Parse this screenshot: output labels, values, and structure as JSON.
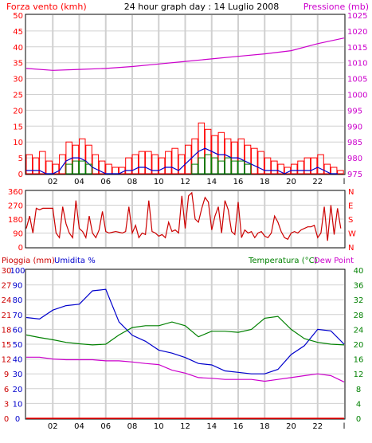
{
  "header": {
    "title": "24 hour graph day : 14 Luglio 2008",
    "left_label": "Forza vento (kmh)",
    "right_label": "Pressione (mb)"
  },
  "colors": {
    "background": "#ffffff",
    "panel_bg": "#ffffff",
    "frame": "#000000",
    "grid": "#d0d0d0",
    "red": "#ff0000",
    "blue": "#0000cc",
    "green": "#008000",
    "magenta": "#cc00cc",
    "wind_gust": "#ff0000",
    "wind_avg": "#0000cc",
    "wind_min": "#008000",
    "pressure": "#cc00cc",
    "direction": "#cc0000",
    "rain": "#cc0000",
    "humidity": "#0000cc",
    "temperature": "#008000",
    "dewpoint": "#cc00cc"
  },
  "x_ticks": [
    "02",
    "04",
    "06",
    "08",
    "10",
    "12",
    "14",
    "16",
    "18",
    "20",
    "22",
    "l"
  ],
  "chart_data": [
    {
      "id": "wind_pressure",
      "type": "line",
      "title": "24 hour graph day : 14 Luglio 2008",
      "ylabel_left": "Forza vento (kmh)",
      "ylabel_right": "Pressione (mb)",
      "ylim_left": [
        0,
        50
      ],
      "ylim_right": [
        975,
        1025
      ],
      "yticks_left": [
        0,
        5,
        10,
        15,
        20,
        25,
        30,
        35,
        40,
        45,
        50
      ],
      "yticks_right": [
        975,
        980,
        985,
        990,
        995,
        1000,
        1005,
        1010,
        1015,
        1020,
        1025
      ],
      "xlim": [
        0,
        24
      ],
      "grid": true,
      "series": [
        {
          "key": "gust",
          "axis": "left",
          "style": "bars",
          "color": "red",
          "x": [
            0.0,
            0.5,
            1.0,
            1.5,
            2.0,
            2.5,
            3.0,
            3.5,
            4.0,
            4.5,
            5.0,
            5.5,
            6.0,
            6.5,
            7.0,
            7.5,
            8.0,
            8.5,
            9.0,
            9.5,
            10.0,
            10.5,
            11.0,
            11.5,
            12.0,
            12.5,
            13.0,
            13.5,
            14.0,
            14.5,
            15.0,
            15.5,
            16.0,
            16.5,
            17.0,
            17.5,
            18.0,
            18.5,
            19.0,
            19.5,
            20.0,
            20.5,
            21.0,
            21.5,
            22.0,
            22.5,
            23.0,
            23.5
          ],
          "values": [
            6,
            5,
            7,
            4,
            3,
            6,
            10,
            9,
            11,
            9,
            6,
            4,
            3,
            2,
            2,
            5,
            6,
            7,
            7,
            6,
            5,
            7,
            8,
            6,
            9,
            11,
            16,
            14,
            12,
            13,
            11,
            10,
            11,
            9,
            8,
            7,
            5,
            4,
            3,
            2,
            3,
            4,
            5,
            5,
            6,
            3,
            2,
            1
          ]
        },
        {
          "key": "average",
          "axis": "left",
          "style": "line",
          "color": "blue",
          "x": [
            0.0,
            0.5,
            1.0,
            1.5,
            2.0,
            2.5,
            3.0,
            3.5,
            4.0,
            4.5,
            5.0,
            5.5,
            6.0,
            6.5,
            7.0,
            7.5,
            8.0,
            8.5,
            9.0,
            9.5,
            10.0,
            10.5,
            11.0,
            11.5,
            12.0,
            12.5,
            13.0,
            13.5,
            14.0,
            14.5,
            15.0,
            15.5,
            16.0,
            16.5,
            17.0,
            17.5,
            18.0,
            18.5,
            19.0,
            19.5,
            20.0,
            20.5,
            21.0,
            21.5,
            22.0,
            22.5,
            23.0,
            23.5
          ],
          "values": [
            1,
            1,
            1,
            0,
            0,
            1,
            4,
            5,
            5,
            4,
            2,
            1,
            0,
            0,
            0,
            1,
            1,
            2,
            2,
            1,
            1,
            2,
            2,
            1,
            3,
            5,
            7,
            8,
            7,
            6,
            6,
            5,
            5,
            4,
            3,
            2,
            1,
            1,
            1,
            0,
            1,
            1,
            1,
            1,
            2,
            1,
            0,
            0
          ]
        },
        {
          "key": "minimum",
          "axis": "left",
          "style": "bars",
          "color": "green",
          "x": [
            3.0,
            3.5,
            4.0,
            4.5,
            12.5,
            13.0,
            13.5,
            14.0,
            14.5,
            15.0,
            15.5,
            16.0,
            16.5
          ],
          "values": [
            3,
            4,
            4,
            3,
            3,
            5,
            6,
            5,
            4,
            5,
            4,
            4,
            3
          ]
        },
        {
          "key": "pressure",
          "axis": "right",
          "style": "line",
          "color": "magenta",
          "x": [
            0,
            2,
            4,
            6,
            8,
            10,
            12,
            14,
            16,
            18,
            20,
            22,
            24
          ],
          "values": [
            1008.2,
            1007.6,
            1007.9,
            1008.2,
            1008.8,
            1009.6,
            1010.4,
            1011.2,
            1012.0,
            1012.8,
            1013.8,
            1016.0,
            1017.8
          ]
        }
      ]
    },
    {
      "id": "wind_direction",
      "type": "line",
      "ylabel_left": "",
      "ylim": [
        0,
        360
      ],
      "yticks_left": [
        0,
        90,
        180,
        270,
        360
      ],
      "yticks_right": [
        "N",
        "W",
        "S",
        "E",
        "N"
      ],
      "xlim": [
        0,
        24
      ],
      "grid": true,
      "series": [
        {
          "key": "direction",
          "color": "red",
          "x": [
            0.0,
            0.25,
            0.5,
            0.75,
            1.0,
            1.25,
            1.5,
            1.75,
            2.0,
            2.25,
            2.5,
            2.75,
            3.0,
            3.25,
            3.5,
            3.75,
            4.0,
            4.25,
            4.5,
            4.75,
            5.0,
            5.25,
            5.5,
            5.75,
            6.0,
            6.25,
            6.5,
            6.75,
            7.0,
            7.25,
            7.5,
            7.75,
            8.0,
            8.25,
            8.5,
            8.75,
            9.0,
            9.25,
            9.5,
            9.75,
            10.0,
            10.25,
            10.5,
            10.75,
            11.0,
            11.25,
            11.5,
            11.75,
            12.0,
            12.25,
            12.5,
            12.75,
            13.0,
            13.25,
            13.5,
            13.75,
            14.0,
            14.25,
            14.5,
            14.75,
            15.0,
            15.25,
            15.5,
            15.75,
            16.0,
            16.25,
            16.5,
            16.75,
            17.0,
            17.25,
            17.5,
            17.75,
            18.0,
            18.25,
            18.5,
            18.75,
            19.0,
            19.25,
            19.5,
            19.75,
            20.0,
            20.25,
            20.5,
            20.75,
            21.0,
            21.25,
            21.5,
            21.75,
            22.0,
            22.25,
            22.5,
            22.75,
            23.0,
            23.25,
            23.5,
            23.75
          ],
          "values": [
            120,
            200,
            90,
            250,
            240,
            250,
            250,
            250,
            250,
            90,
            60,
            260,
            150,
            90,
            60,
            300,
            120,
            100,
            60,
            200,
            90,
            60,
            110,
            230,
            100,
            90,
            95,
            100,
            95,
            90,
            100,
            260,
            90,
            140,
            60,
            90,
            80,
            300,
            100,
            90,
            70,
            80,
            60,
            160,
            100,
            110,
            90,
            330,
            120,
            330,
            350,
            180,
            160,
            250,
            320,
            290,
            110,
            200,
            260,
            90,
            300,
            240,
            100,
            80,
            290,
            60,
            110,
            90,
            100,
            60,
            90,
            100,
            70,
            60,
            90,
            200,
            160,
            100,
            60,
            50,
            90,
            100,
            90,
            110,
            120,
            130,
            130,
            140,
            60,
            90,
            260,
            40,
            270,
            80,
            250,
            120
          ]
        }
      ]
    },
    {
      "id": "temp_humidity",
      "type": "line",
      "ylabel_left": "Pioggia (mm)",
      "ylabel_left2": "Umidita %",
      "ylabel_right": "Temperatura (°C)",
      "ylabel_right2": "Dew Point",
      "ylim_rain": [
        0,
        30
      ],
      "ylim_humidity": [
        0,
        100
      ],
      "ylim_temp": [
        0,
        40
      ],
      "yticks_rain": [
        0,
        3,
        6,
        9,
        12,
        15,
        18,
        21,
        24,
        27,
        30
      ],
      "yticks_humidity": [
        0,
        10,
        20,
        30,
        40,
        50,
        60,
        70,
        80,
        90,
        100
      ],
      "yticks_temp": [
        0,
        4,
        8,
        12,
        16,
        20,
        24,
        28,
        32,
        36,
        40
      ],
      "xlim": [
        0,
        24
      ],
      "grid": true,
      "series": [
        {
          "key": "rain",
          "axis": "rain",
          "color": "red",
          "x": [
            0,
            24
          ],
          "values": [
            0,
            0
          ]
        },
        {
          "key": "humidity",
          "axis": "humidity",
          "color": "blue",
          "x": [
            0,
            1,
            2,
            3,
            4,
            5,
            6,
            7,
            8,
            9,
            10,
            11,
            12,
            13,
            14,
            15,
            16,
            17,
            18,
            19,
            20,
            21,
            22,
            23,
            24
          ],
          "values": [
            68,
            67,
            73,
            76,
            77,
            86,
            87,
            65,
            56,
            52,
            46,
            44,
            41,
            37,
            36,
            32,
            31,
            30,
            30,
            33,
            43,
            49,
            60,
            59,
            50
          ]
        },
        {
          "key": "temperature",
          "axis": "temp",
          "color": "green",
          "x": [
            0,
            1,
            2,
            3,
            4,
            5,
            6,
            7,
            8,
            9,
            10,
            11,
            12,
            13,
            14,
            15,
            16,
            17,
            18,
            19,
            20,
            21,
            22,
            23,
            24
          ],
          "values": [
            22.5,
            21.8,
            21.2,
            20.5,
            20.1,
            19.8,
            20,
            22.5,
            24.5,
            25,
            25,
            26,
            25,
            22,
            23.5,
            23.5,
            23.2,
            24,
            27,
            27.5,
            24,
            21.5,
            20.5,
            20,
            19.8
          ]
        },
        {
          "key": "dewpoint",
          "axis": "temp",
          "color": "magenta",
          "x": [
            0,
            1,
            2,
            3,
            4,
            5,
            6,
            7,
            8,
            9,
            10,
            11,
            12,
            13,
            14,
            15,
            16,
            17,
            18,
            19,
            20,
            21,
            22,
            23,
            24
          ],
          "values": [
            16.5,
            16.5,
            16,
            15.8,
            15.8,
            15.8,
            15.5,
            15.5,
            15.2,
            14.8,
            14.5,
            13,
            12.2,
            11,
            10.8,
            10.5,
            10.5,
            10.5,
            10,
            10.5,
            11,
            11.5,
            12,
            11.5,
            9.8
          ]
        }
      ]
    }
  ]
}
